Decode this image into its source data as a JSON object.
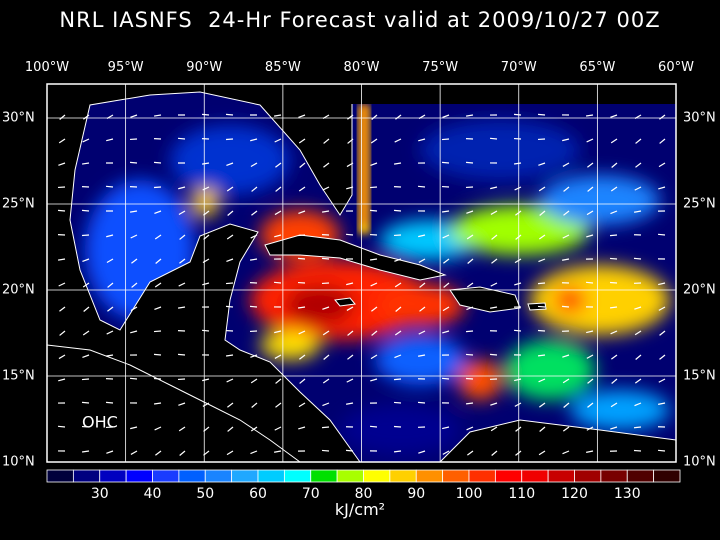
{
  "title": "NRL IASNFS  24-Hr Forecast valid at 2009/10/27 00Z",
  "map": {
    "lon_labels": [
      "100°W",
      "95°W",
      "90°W",
      "85°W",
      "80°W",
      "75°W",
      "70°W",
      "65°W",
      "60°W"
    ],
    "lat_labels": [
      "30°N",
      "25°N",
      "20°N",
      "15°N",
      "10°N"
    ],
    "field_label": "OHC",
    "lon_range": [
      -100,
      -60
    ],
    "lat_range": [
      10,
      32
    ]
  },
  "colorbar": {
    "ticks": [
      "30",
      "40",
      "50",
      "60",
      "70",
      "80",
      "90",
      "100",
      "110",
      "120",
      "130"
    ],
    "unit": "kJ/cm²",
    "colors": [
      "#00003c",
      "#000080",
      "#0000c0",
      "#0000ff",
      "#1a3cff",
      "#0060ff",
      "#1a84ff",
      "#20a8ff",
      "#00ccff",
      "#00ffff",
      "#00e000",
      "#a8ff00",
      "#ffff00",
      "#ffd000",
      "#ff9000",
      "#ff6000",
      "#ff3000",
      "#ff0000",
      "#f00000",
      "#c80000",
      "#a00000",
      "#780000",
      "#500000",
      "#300000"
    ]
  }
}
